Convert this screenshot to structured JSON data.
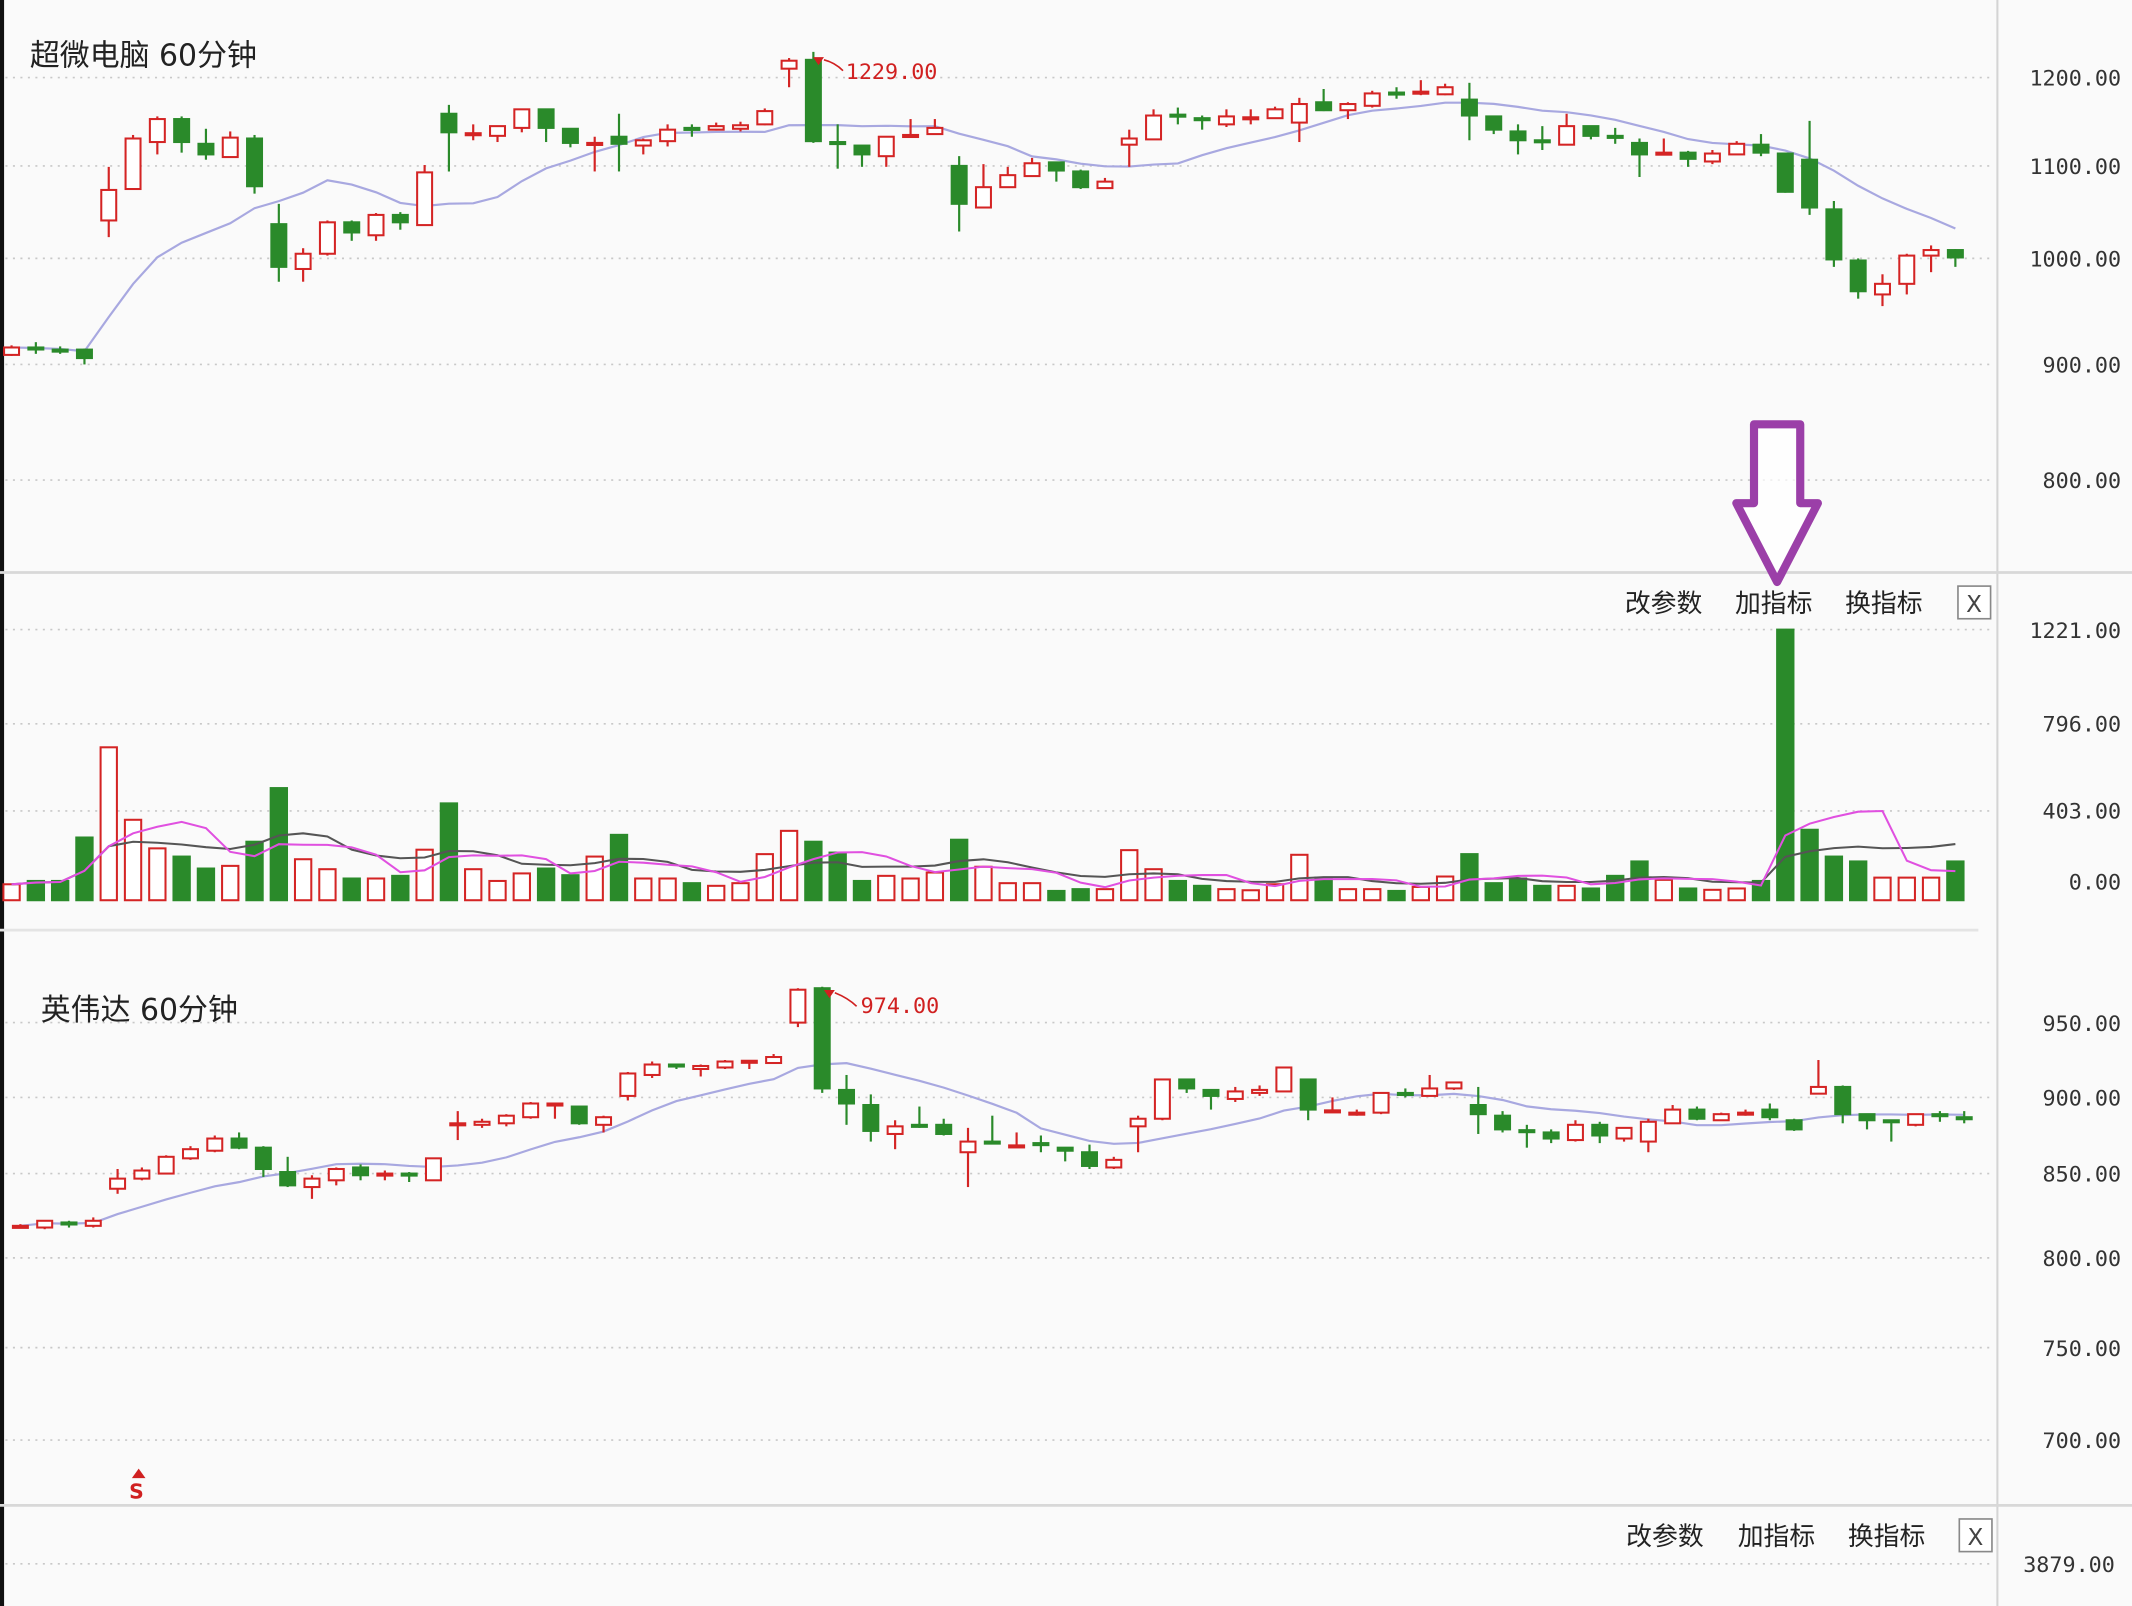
{
  "colors": {
    "up": "#d42424",
    "down": "#2a8a2a",
    "ma": "#a8a8e0",
    "vol_ma_short": "#e050e0",
    "vol_ma_long": "#555555",
    "arrow": "#9b3fa8",
    "background": "#fafafa"
  },
  "controls": {
    "edit_params": "改参数",
    "add_indicator": "加指标",
    "switch_indicator": "换指标",
    "close": "X"
  },
  "bottom_indicator": {
    "axis_label": "3879.00"
  },
  "signal_marker": {
    "label": "S"
  },
  "chart_data": [
    {
      "type": "candlestick",
      "title": "超微电脑 60分钟",
      "y_ticks": [
        "1200.00",
        "1100.00",
        "1000.00",
        "900.00",
        "800.00"
      ],
      "y_tick_values": [
        1200,
        1100,
        1000,
        900,
        800
      ],
      "annotation": {
        "label": "1229.00",
        "value": 1229,
        "candle": 34
      },
      "grid": "horizontal dotted",
      "fields": [
        "open",
        "high",
        "low",
        "close"
      ],
      "ohlc": [
        [
          909,
          918,
          908,
          916
        ],
        [
          916,
          921,
          910,
          915
        ],
        [
          914,
          917,
          910,
          913
        ],
        [
          914,
          915,
          900,
          906
        ],
        [
          1041,
          1099,
          1023,
          1074
        ],
        [
          1075,
          1135,
          1074,
          1131
        ],
        [
          1127,
          1156,
          1113,
          1153
        ],
        [
          1153,
          1156,
          1115,
          1127
        ],
        [
          1125,
          1142,
          1107,
          1113
        ],
        [
          1110,
          1139,
          1110,
          1132
        ],
        [
          1131,
          1135,
          1070,
          1078
        ],
        [
          1037,
          1059,
          978,
          992
        ],
        [
          990,
          1011,
          978,
          1005
        ],
        [
          1005,
          1041,
          1003,
          1039
        ],
        [
          1039,
          1041,
          1019,
          1028
        ],
        [
          1025,
          1049,
          1019,
          1047
        ],
        [
          1047,
          1050,
          1031,
          1039
        ],
        [
          1036,
          1101,
          1036,
          1093
        ],
        [
          1159,
          1169,
          1094,
          1138
        ],
        [
          1135,
          1147,
          1129,
          1137
        ],
        [
          1134,
          1145,
          1127,
          1145
        ],
        [
          1143,
          1164,
          1138,
          1164
        ],
        [
          1164,
          1164,
          1127,
          1143
        ],
        [
          1142,
          1142,
          1121,
          1126
        ],
        [
          1124,
          1133,
          1094,
          1126
        ],
        [
          1133,
          1159,
          1094,
          1125
        ],
        [
          1123,
          1131,
          1113,
          1129
        ],
        [
          1128,
          1147,
          1122,
          1141
        ],
        [
          1143,
          1147,
          1133,
          1141
        ],
        [
          1141,
          1149,
          1140,
          1145
        ],
        [
          1142,
          1150,
          1139,
          1146
        ],
        [
          1147,
          1165,
          1146,
          1162
        ],
        [
          1210,
          1222,
          1189,
          1219
        ],
        [
          1220,
          1229,
          1126,
          1128
        ],
        [
          1127,
          1147,
          1097,
          1126
        ],
        [
          1123,
          1123,
          1099,
          1113
        ],
        [
          1111,
          1133,
          1099,
          1133
        ],
        [
          1133,
          1153,
          1133,
          1135
        ],
        [
          1136,
          1153,
          1136,
          1143
        ],
        [
          1100,
          1111,
          1029,
          1059
        ],
        [
          1055,
          1102,
          1055,
          1077
        ],
        [
          1077,
          1099,
          1077,
          1090
        ],
        [
          1089,
          1109,
          1089,
          1103
        ],
        [
          1104,
          1104,
          1083,
          1095
        ],
        [
          1094,
          1096,
          1075,
          1077
        ],
        [
          1076,
          1087,
          1076,
          1083
        ],
        [
          1124,
          1141,
          1099,
          1131
        ],
        [
          1130,
          1164,
          1130,
          1157
        ],
        [
          1158,
          1166,
          1147,
          1156
        ],
        [
          1154,
          1157,
          1141,
          1152
        ],
        [
          1147,
          1164,
          1144,
          1156
        ],
        [
          1153,
          1164,
          1147,
          1155
        ],
        [
          1154,
          1167,
          1154,
          1164
        ],
        [
          1149,
          1177,
          1127,
          1170
        ],
        [
          1172,
          1187,
          1162,
          1163
        ],
        [
          1163,
          1172,
          1153,
          1170
        ],
        [
          1168,
          1185,
          1166,
          1182
        ],
        [
          1183,
          1189,
          1176,
          1182
        ],
        [
          1183,
          1197,
          1180,
          1184
        ],
        [
          1181,
          1193,
          1180,
          1189
        ],
        [
          1175,
          1194,
          1129,
          1157
        ],
        [
          1156,
          1156,
          1136,
          1141
        ],
        [
          1139,
          1147,
          1113,
          1129
        ],
        [
          1129,
          1145,
          1118,
          1128
        ],
        [
          1124,
          1159,
          1124,
          1145
        ],
        [
          1145,
          1145,
          1130,
          1134
        ],
        [
          1134,
          1143,
          1125,
          1133
        ],
        [
          1126,
          1131,
          1088,
          1113
        ],
        [
          1113,
          1131,
          1113,
          1115
        ],
        [
          1115,
          1117,
          1099,
          1108
        ],
        [
          1105,
          1118,
          1102,
          1114
        ],
        [
          1113,
          1128,
          1113,
          1125
        ],
        [
          1124,
          1136,
          1111,
          1115
        ],
        [
          1114,
          1115,
          1071,
          1072
        ],
        [
          1107,
          1151,
          1047,
          1055
        ],
        [
          1053,
          1062,
          992,
          999
        ],
        [
          998,
          1000,
          962,
          969
        ],
        [
          966,
          985,
          955,
          976
        ],
        [
          976,
          1005,
          966,
          1003
        ],
        [
          1003,
          1014,
          987,
          1009
        ],
        [
          1009,
          1010,
          992,
          1001
        ]
      ]
    },
    {
      "type": "bar",
      "y_ticks": [
        "1221.00",
        "796.00",
        "403.00",
        "0.00"
      ],
      "y_tick_values": [
        1221,
        796,
        403,
        0
      ],
      "grid": "horizontal dotted",
      "values": [
        72,
        87,
        87,
        283,
        690,
        363,
        234,
        197,
        143,
        155,
        264,
        506,
        185,
        140,
        98,
        98,
        110,
        228,
        437,
        140,
        87,
        121,
        143,
        113,
        197,
        295,
        98,
        98,
        77,
        65,
        77,
        208,
        313,
        264,
        215,
        87,
        110,
        98,
        125,
        273,
        151,
        77,
        77,
        42,
        50,
        50,
        226,
        140,
        87,
        65,
        50,
        45,
        72,
        205,
        102,
        50,
        50,
        42,
        60,
        107,
        208,
        77,
        98,
        65,
        65,
        53,
        110,
        175,
        92,
        53,
        47,
        53,
        87,
        1221,
        318,
        197,
        175,
        102,
        102,
        102,
        175
      ]
    },
    {
      "type": "candlestick",
      "title": "英伟达 60分钟",
      "y_ticks": [
        "950.00",
        "900.00",
        "850.00",
        "800.00",
        "750.00",
        "700.00"
      ],
      "y_tick_values": [
        950,
        900,
        850,
        800,
        750,
        700
      ],
      "annotation": {
        "label": "974.00",
        "value": 974,
        "candle": 34
      },
      "grid": "horizontal dotted",
      "fields": [
        "open",
        "high",
        "low",
        "close"
      ],
      "ohlc": [
        [
          818,
          820,
          818,
          819
        ],
        [
          818,
          822,
          817,
          822
        ],
        [
          821,
          822,
          818,
          820
        ],
        [
          819,
          824,
          818,
          822
        ],
        [
          841,
          853,
          838,
          847
        ],
        [
          847,
          854,
          846,
          852
        ],
        [
          850,
          862,
          850,
          861
        ],
        [
          860,
          868,
          859,
          866
        ],
        [
          865,
          875,
          864,
          873
        ],
        [
          873,
          877,
          866,
          867
        ],
        [
          867,
          868,
          848,
          853
        ],
        [
          851,
          861,
          842,
          843
        ],
        [
          842,
          849,
          835,
          847
        ],
        [
          846,
          854,
          843,
          853
        ],
        [
          854,
          856,
          846,
          849
        ],
        [
          849,
          852,
          846,
          850
        ],
        [
          850,
          851,
          845,
          849
        ],
        [
          846,
          860,
          846,
          860
        ],
        [
          882,
          891,
          872,
          883
        ],
        [
          882,
          886,
          880,
          884
        ],
        [
          883,
          889,
          881,
          888
        ],
        [
          887,
          897,
          886,
          896
        ],
        [
          895,
          896,
          886,
          896
        ],
        [
          894,
          894,
          882,
          883
        ],
        [
          882,
          888,
          877,
          887
        ],
        [
          901,
          917,
          898,
          916
        ],
        [
          915,
          924,
          913,
          922
        ],
        [
          922,
          922,
          919,
          921
        ],
        [
          919,
          922,
          914,
          921
        ],
        [
          920,
          925,
          919,
          924
        ],
        [
          924,
          925,
          919,
          924.5
        ],
        [
          923,
          929,
          923,
          927
        ],
        [
          950,
          973,
          947,
          972
        ],
        [
          973,
          974,
          903,
          906
        ],
        [
          905,
          915,
          882,
          896
        ],
        [
          895,
          902,
          871,
          878
        ],
        [
          876,
          885,
          866,
          881
        ],
        [
          882,
          894,
          880,
          881
        ],
        [
          882,
          886,
          875,
          876
        ],
        [
          864,
          880,
          842,
          871
        ],
        [
          871,
          888,
          870,
          870
        ],
        [
          868,
          877,
          867,
          868.5
        ],
        [
          870,
          875,
          864,
          869
        ],
        [
          867,
          867,
          858,
          865
        ],
        [
          864,
          869,
          853,
          855
        ],
        [
          854,
          861,
          853,
          859
        ],
        [
          881,
          888,
          864,
          886
        ],
        [
          886,
          912,
          885,
          912
        ],
        [
          912,
          912,
          903,
          906
        ],
        [
          905,
          905,
          892,
          901
        ],
        [
          899,
          907,
          897,
          904
        ],
        [
          903,
          908,
          901,
          905
        ],
        [
          904,
          920,
          904,
          920
        ],
        [
          912,
          912,
          885,
          892
        ],
        [
          891,
          900,
          891,
          891.5
        ],
        [
          889,
          892,
          888,
          890
        ],
        [
          890,
          903,
          889,
          903
        ],
        [
          903,
          906,
          900,
          902.5
        ],
        [
          901,
          915,
          901,
          906
        ],
        [
          906,
          910,
          905,
          910
        ],
        [
          895,
          907,
          876,
          889
        ],
        [
          888,
          891,
          877,
          879
        ],
        [
          878.5,
          882,
          867,
          878
        ],
        [
          877,
          879,
          870,
          873
        ],
        [
          872,
          885,
          871,
          882
        ],
        [
          882,
          884,
          870,
          875
        ],
        [
          873,
          880,
          871,
          880
        ],
        [
          871,
          886,
          864,
          884
        ],
        [
          883,
          895,
          883,
          892
        ],
        [
          892,
          894,
          885,
          886
        ],
        [
          885,
          890,
          885,
          889
        ],
        [
          889,
          892,
          888,
          890
        ],
        [
          892,
          896,
          885,
          887
        ],
        [
          885,
          886,
          878,
          879
        ],
        [
          902.5,
          925,
          902,
          907
        ],
        [
          907,
          908,
          883,
          889
        ],
        [
          889,
          889,
          879,
          885
        ],
        [
          885,
          885,
          871,
          884.5
        ],
        [
          882,
          889,
          881,
          889
        ],
        [
          889,
          891,
          884,
          888.5
        ],
        [
          887,
          891,
          883,
          886.5
        ]
      ]
    }
  ]
}
